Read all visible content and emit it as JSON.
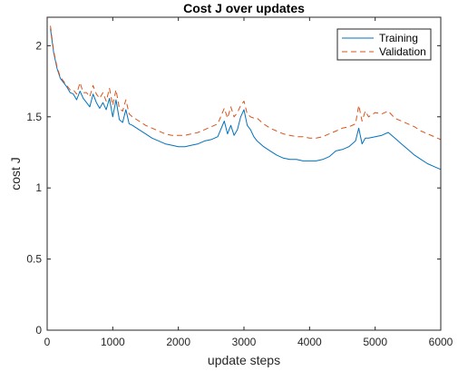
{
  "chart_data": {
    "type": "line",
    "title": "Cost J over updates",
    "xlabel": "update steps",
    "ylabel": "cost J",
    "xlim": [
      0,
      6000
    ],
    "ylim": [
      0,
      2.2
    ],
    "x_ticks": [
      0,
      1000,
      2000,
      3000,
      4000,
      5000,
      6000
    ],
    "x_tick_labels": [
      "0",
      "1000",
      "2000",
      "3000",
      "4000",
      "5000",
      "6000"
    ],
    "y_ticks": [
      0,
      0.5,
      1,
      1.5,
      2
    ],
    "y_tick_labels": [
      "0",
      "0.5",
      "1",
      "1.5",
      "2"
    ],
    "grid": false,
    "legend_position": "top-right",
    "series": [
      {
        "name": "Training",
        "color": "#0072BD",
        "line_style": "solid",
        "x": [
          50,
          100,
          150,
          200,
          250,
          300,
          350,
          400,
          450,
          500,
          550,
          600,
          650,
          700,
          750,
          800,
          850,
          900,
          950,
          1000,
          1050,
          1100,
          1150,
          1200,
          1250,
          1300,
          1400,
          1500,
          1600,
          1700,
          1800,
          1900,
          2000,
          2100,
          2200,
          2300,
          2400,
          2500,
          2600,
          2700,
          2750,
          2800,
          2850,
          2900,
          2950,
          3000,
          3050,
          3100,
          3150,
          3200,
          3300,
          3400,
          3500,
          3600,
          3700,
          3800,
          3900,
          4000,
          4100,
          4200,
          4300,
          4400,
          4500,
          4600,
          4700,
          4750,
          4800,
          4850,
          4900,
          5000,
          5100,
          5200,
          5300,
          5400,
          5500,
          5600,
          5700,
          5800,
          5900,
          6000
        ],
        "y": [
          2.12,
          1.95,
          1.84,
          1.77,
          1.74,
          1.71,
          1.67,
          1.66,
          1.62,
          1.68,
          1.63,
          1.6,
          1.57,
          1.66,
          1.6,
          1.56,
          1.6,
          1.55,
          1.63,
          1.5,
          1.62,
          1.48,
          1.46,
          1.55,
          1.45,
          1.44,
          1.41,
          1.38,
          1.35,
          1.33,
          1.31,
          1.3,
          1.29,
          1.29,
          1.3,
          1.31,
          1.33,
          1.34,
          1.36,
          1.47,
          1.38,
          1.44,
          1.37,
          1.41,
          1.5,
          1.55,
          1.44,
          1.41,
          1.36,
          1.33,
          1.29,
          1.26,
          1.23,
          1.21,
          1.2,
          1.2,
          1.19,
          1.19,
          1.19,
          1.2,
          1.22,
          1.26,
          1.27,
          1.29,
          1.33,
          1.42,
          1.31,
          1.35,
          1.35,
          1.36,
          1.37,
          1.39,
          1.35,
          1.31,
          1.27,
          1.23,
          1.2,
          1.17,
          1.15,
          1.13
        ]
      },
      {
        "name": "Validation",
        "color": "#D95319",
        "line_style": "dashed",
        "x": [
          50,
          100,
          150,
          200,
          250,
          300,
          350,
          400,
          450,
          500,
          550,
          600,
          650,
          700,
          750,
          800,
          850,
          900,
          950,
          1000,
          1050,
          1100,
          1150,
          1200,
          1250,
          1300,
          1400,
          1500,
          1600,
          1700,
          1800,
          1900,
          2000,
          2100,
          2200,
          2300,
          2400,
          2500,
          2600,
          2700,
          2750,
          2800,
          2850,
          2900,
          2950,
          3000,
          3050,
          3100,
          3150,
          3200,
          3300,
          3400,
          3500,
          3600,
          3700,
          3800,
          3900,
          4000,
          4100,
          4200,
          4300,
          4400,
          4500,
          4600,
          4700,
          4750,
          4800,
          4850,
          4900,
          5000,
          5100,
          5200,
          5300,
          5400,
          5500,
          5600,
          5700,
          5800,
          5900,
          6000
        ],
        "y": [
          2.14,
          1.96,
          1.85,
          1.78,
          1.75,
          1.72,
          1.69,
          1.69,
          1.66,
          1.74,
          1.67,
          1.67,
          1.64,
          1.72,
          1.66,
          1.63,
          1.67,
          1.61,
          1.7,
          1.58,
          1.69,
          1.56,
          1.54,
          1.62,
          1.52,
          1.5,
          1.47,
          1.44,
          1.42,
          1.4,
          1.38,
          1.37,
          1.37,
          1.37,
          1.38,
          1.39,
          1.41,
          1.43,
          1.45,
          1.56,
          1.49,
          1.57,
          1.5,
          1.53,
          1.58,
          1.61,
          1.52,
          1.5,
          1.49,
          1.49,
          1.45,
          1.42,
          1.4,
          1.38,
          1.37,
          1.36,
          1.36,
          1.35,
          1.35,
          1.36,
          1.38,
          1.4,
          1.42,
          1.43,
          1.45,
          1.58,
          1.47,
          1.54,
          1.5,
          1.53,
          1.52,
          1.54,
          1.49,
          1.47,
          1.45,
          1.43,
          1.4,
          1.38,
          1.36,
          1.34
        ]
      }
    ]
  }
}
